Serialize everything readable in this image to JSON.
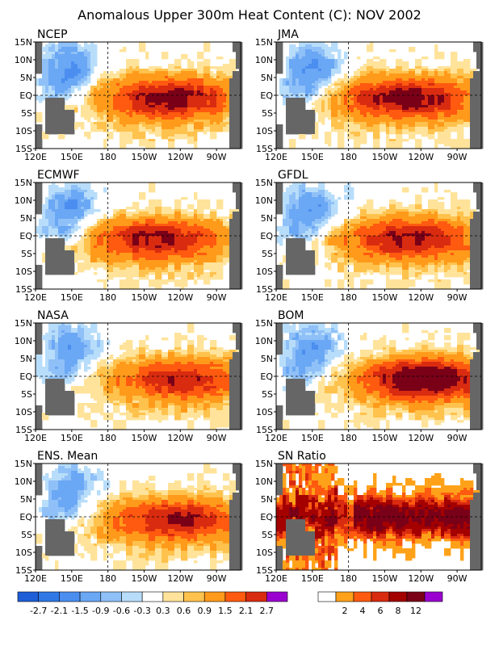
{
  "title": "Anomalous Upper 300m Heat Content (C): NOV 2002",
  "axes": {
    "x_ticks": [
      "120E",
      "150E",
      "180",
      "150W",
      "120W",
      "90W"
    ],
    "y_ticks": [
      "15N",
      "10N",
      "5N",
      "EQ",
      "5S",
      "10S",
      "15S"
    ]
  },
  "colors": {
    "land": "#666666",
    "anomaly_scale": [
      "#1e5fd8",
      "#2f78e6",
      "#4b8ef0",
      "#6aa7f4",
      "#8fc0f7",
      "#b7ddfa",
      "#ffffff",
      "#ffe39a",
      "#ffc24d",
      "#ff9a1a",
      "#ff5a10",
      "#d92b10",
      "#a40000",
      "#7a0018",
      "#9a00d0"
    ],
    "sn_scale": [
      "#ffffff",
      "#ffa21a",
      "#ff5a10",
      "#d92b10",
      "#a40000",
      "#7a0018",
      "#9a00d0"
    ]
  },
  "legend_anomaly": {
    "labels": [
      "-2.7",
      "-2.1",
      "-1.5",
      "-0.9",
      "-0.6",
      "-0.3",
      "0.3",
      "0.6",
      "0.9",
      "1.5",
      "2.1",
      "2.7"
    ]
  },
  "legend_sn": {
    "labels": [
      "2",
      "4",
      "6",
      "8",
      "12"
    ]
  },
  "chart_data": [
    {
      "type": "heatmap",
      "panel": "NCEP",
      "hot_lon": -130,
      "hot_amp": 2.3,
      "cold_amp": -1.6,
      "scale": "anomaly"
    },
    {
      "type": "heatmap",
      "panel": "JMA",
      "hot_lon": -130,
      "hot_amp": 2.3,
      "cold_amp": -1.6,
      "scale": "anomaly"
    },
    {
      "type": "heatmap",
      "panel": "ECMWF",
      "hot_lon": -140,
      "hot_amp": 2.0,
      "cold_amp": -1.5,
      "scale": "anomaly"
    },
    {
      "type": "heatmap",
      "panel": "GFDL",
      "hot_lon": -130,
      "hot_amp": 2.0,
      "cold_amp": -1.5,
      "scale": "anomaly"
    },
    {
      "type": "heatmap",
      "panel": "NASA",
      "hot_lon": -120,
      "hot_amp": 1.8,
      "cold_amp": -1.3,
      "scale": "anomaly"
    },
    {
      "type": "heatmap",
      "panel": "BOM",
      "hot_lon": -115,
      "hot_amp": 2.8,
      "cold_amp": -1.4,
      "scale": "anomaly"
    },
    {
      "type": "heatmap",
      "panel": "ENS. Mean",
      "hot_lon": -125,
      "hot_amp": 2.0,
      "cold_amp": -1.3,
      "scale": "anomaly"
    },
    {
      "type": "heatmap",
      "panel": "SN Ratio",
      "hot_lon": -140,
      "hot_amp": 12,
      "cold_amp": 5,
      "scale": "sn"
    }
  ]
}
